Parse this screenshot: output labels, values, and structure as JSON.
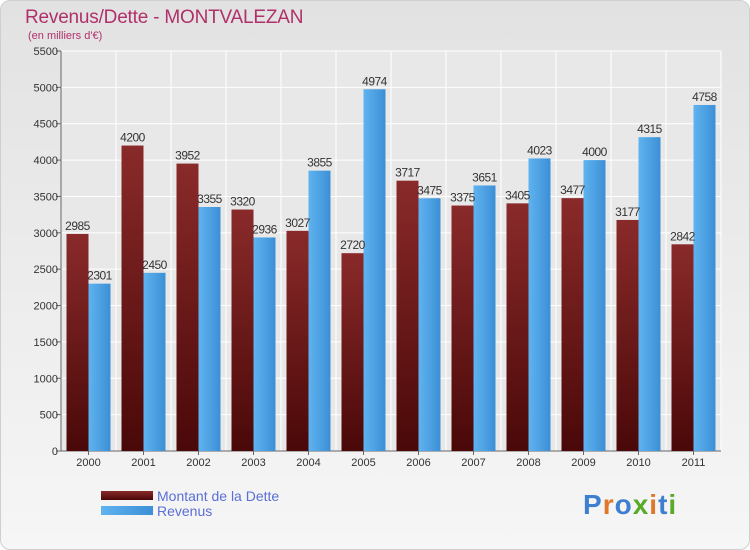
{
  "chart_data": {
    "type": "bar",
    "title": "Revenus/Dette - MONTVALEZAN",
    "subtitle": "(en milliers d'€)",
    "categories": [
      "2000",
      "2001",
      "2002",
      "2003",
      "2004",
      "2005",
      "2006",
      "2007",
      "2008",
      "2009",
      "2010",
      "2011"
    ],
    "series": [
      {
        "name": "Montant de la Dette",
        "color": "#7a1a1a",
        "values": [
          2985,
          4200,
          3952,
          3320,
          3027,
          2720,
          3717,
          3375,
          3405,
          3477,
          3177,
          2842
        ]
      },
      {
        "name": "Revenus",
        "color": "#4fa3e6",
        "values": [
          2301,
          2450,
          3355,
          2936,
          3855,
          4974,
          3475,
          3651,
          4023,
          4000,
          4315,
          4758
        ]
      }
    ],
    "ylim": [
      0,
      5500
    ],
    "yticks": [
      0,
      500,
      1000,
      1500,
      2000,
      2500,
      3000,
      3500,
      4000,
      4500,
      5000,
      5500
    ],
    "grid": true,
    "legend_position": "bottom-left"
  },
  "logo_text": "Proxiti"
}
